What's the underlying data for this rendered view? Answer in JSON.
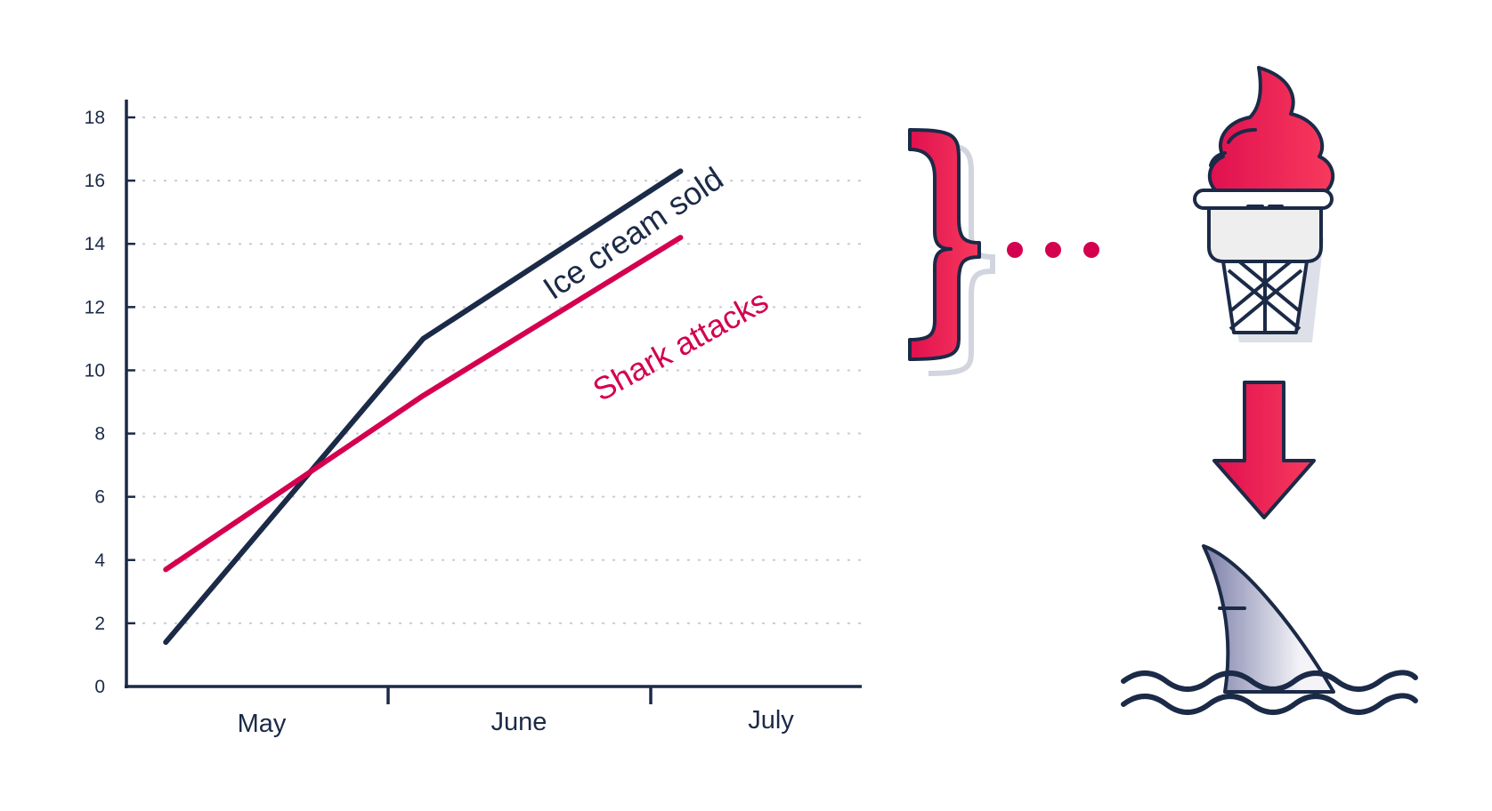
{
  "colors": {
    "navy": "#1b2a47",
    "crimson": "#d4004f",
    "pink": "#f2285a",
    "grid": "#c7ccd6",
    "cone": "#eeeeee",
    "fin_light": "#f4f4f8",
    "fin_dark": "#7b7ea8"
  },
  "icons": [
    "curly-brace-icon",
    "ice-cream-cone-icon",
    "down-arrow-icon",
    "shark-fin-icon",
    "waves-icon"
  ],
  "chart_data": {
    "type": "line",
    "x": [
      0.15,
      1.13,
      2.11
    ],
    "categories": [
      "May",
      "June",
      "July"
    ],
    "xlim": [
      0,
      2.8
    ],
    "ylim": [
      0,
      18
    ],
    "yticks": [
      0,
      2,
      4,
      6,
      8,
      10,
      12,
      14,
      16,
      18
    ],
    "grid": "horizontal-dotted",
    "series": [
      {
        "name": "Ice cream sold",
        "color": "#1b2a47",
        "values": [
          1.4,
          11.0,
          16.3
        ]
      },
      {
        "name": "Shark attacks",
        "color": "#d4004f",
        "values": [
          3.7,
          9.2,
          14.2
        ]
      }
    ]
  }
}
